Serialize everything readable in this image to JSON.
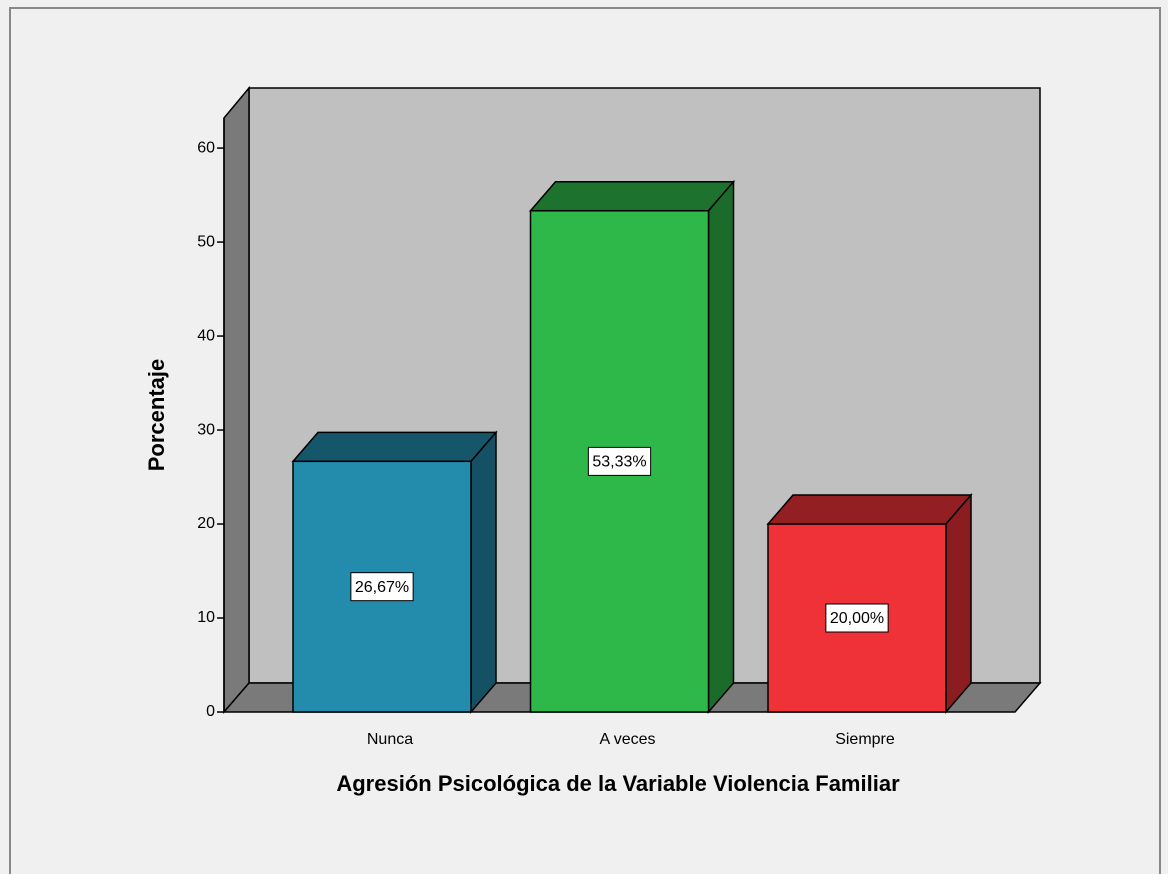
{
  "chart_data": {
    "type": "bar3d",
    "x_label": "Agresión Psicológica de la Variable Violencia Familiar",
    "y_label": "Porcentaje",
    "categories": [
      "Nunca",
      "A veces",
      "Siempre"
    ],
    "values": [
      26.67,
      53.33,
      20.0
    ],
    "value_labels": [
      "26,67%",
      "53,33%",
      "20,00%"
    ],
    "colors": [
      "#238bac",
      "#2fb84a",
      "#ef3238"
    ],
    "ylim": [
      0,
      63.2
    ],
    "yticks": [
      0,
      10,
      20,
      30,
      40,
      50,
      60
    ]
  }
}
